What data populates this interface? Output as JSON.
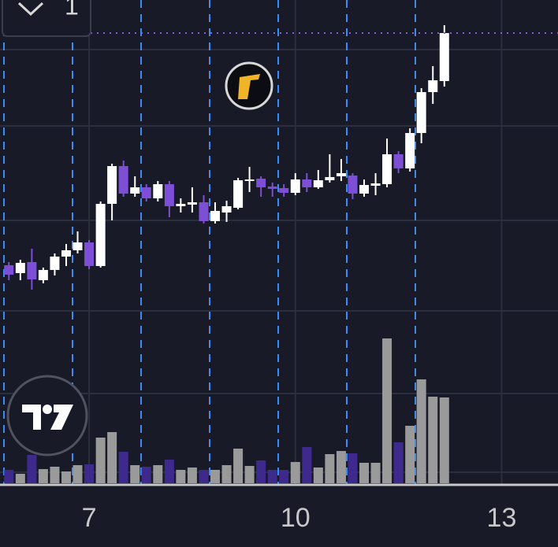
{
  "interval_label": "1",
  "chart_data": {
    "type": "candlestick",
    "x": [
      5.833,
      6,
      6.167,
      6.333,
      6.5,
      6.667,
      6.833,
      7,
      7.167,
      7.333,
      7.5,
      7.667,
      7.833,
      8,
      8.167,
      8.333,
      8.5,
      8.667,
      8.833,
      9,
      9.167,
      9.333,
      9.5,
      9.667,
      9.833,
      10,
      10.167,
      10.333,
      10.5,
      10.667,
      10.833,
      11,
      11.167,
      11.333,
      11.5,
      11.667,
      11.833,
      12,
      12.167
    ],
    "open": [
      28.3,
      27.3,
      28.7,
      26.4,
      27.7,
      29.4,
      30.2,
      31.2,
      28.2,
      36.1,
      40.9,
      37.4,
      38.2,
      36.8,
      38.6,
      35.8,
      36.0,
      36.3,
      33.9,
      35.0,
      35.6,
      39.0,
      39.3,
      38.3,
      38.1,
      37.5,
      39.2,
      38.2,
      39.1,
      39.6,
      39.7,
      37.4,
      38.4,
      38.6,
      42.4,
      40.6,
      45.1,
      50.3,
      51.7
    ],
    "high": [
      28.7,
      29.0,
      30.4,
      28.0,
      29.8,
      31.0,
      32.6,
      31.5,
      36.4,
      41.2,
      41.6,
      39.6,
      38.6,
      39.0,
      39.0,
      36.8,
      38.2,
      37.2,
      36.3,
      36.5,
      39.4,
      40.8,
      39.6,
      38.8,
      38.6,
      40.0,
      40.0,
      40.4,
      42.4,
      41.8,
      40.0,
      39.2,
      40.0,
      44.4,
      42.8,
      45.7,
      50.8,
      53.6,
      58.8
    ],
    "low": [
      26.4,
      26.4,
      25.2,
      26.0,
      27.0,
      28.2,
      29.8,
      27.8,
      28.0,
      34.0,
      37.0,
      37.0,
      36.4,
      36.4,
      34.4,
      35.0,
      35.0,
      33.6,
      33.6,
      33.8,
      35.4,
      37.6,
      37.0,
      37.0,
      37.0,
      37.2,
      37.6,
      38.0,
      38.8,
      39.0,
      36.7,
      37.0,
      37.2,
      38.2,
      40.0,
      40.2,
      43.8,
      48.8,
      51.0
    ],
    "close": [
      27.1,
      28.6,
      26.5,
      27.7,
      29.4,
      30.2,
      31.2,
      28.2,
      36.1,
      40.9,
      37.4,
      38.2,
      36.8,
      38.6,
      35.8,
      36.1,
      36.3,
      33.9,
      35.2,
      35.8,
      39.1,
      39.2,
      38.2,
      38.0,
      37.5,
      39.2,
      38.2,
      39.1,
      39.5,
      40.0,
      37.4,
      38.5,
      38.7,
      42.4,
      40.6,
      45.1,
      50.3,
      51.8,
      57.8
    ],
    "volume": [
      8.5,
      6,
      18,
      9,
      10.5,
      7.5,
      11.5,
      12,
      29,
      32.5,
      20,
      11.5,
      10.5,
      11.5,
      15,
      8.5,
      10,
      8.5,
      8.5,
      11.5,
      22,
      11,
      14.5,
      8.5,
      8.5,
      13.5,
      23,
      10,
      18.5,
      20.5,
      19,
      13,
      13,
      92,
      26,
      36.5,
      66,
      55,
      54.5
    ],
    "xlim": [
      5.704,
      13.82
    ],
    "ylim": [
      0,
      62
    ],
    "volume_lim": [
      0,
      100
    ],
    "xticks": [
      7,
      10,
      13
    ],
    "up_color": "#ffffff",
    "down_color": "#7c4fd6",
    "up_volume_color": "#9a9a9a",
    "down_volume_color": "#3e2a8c"
  }
}
